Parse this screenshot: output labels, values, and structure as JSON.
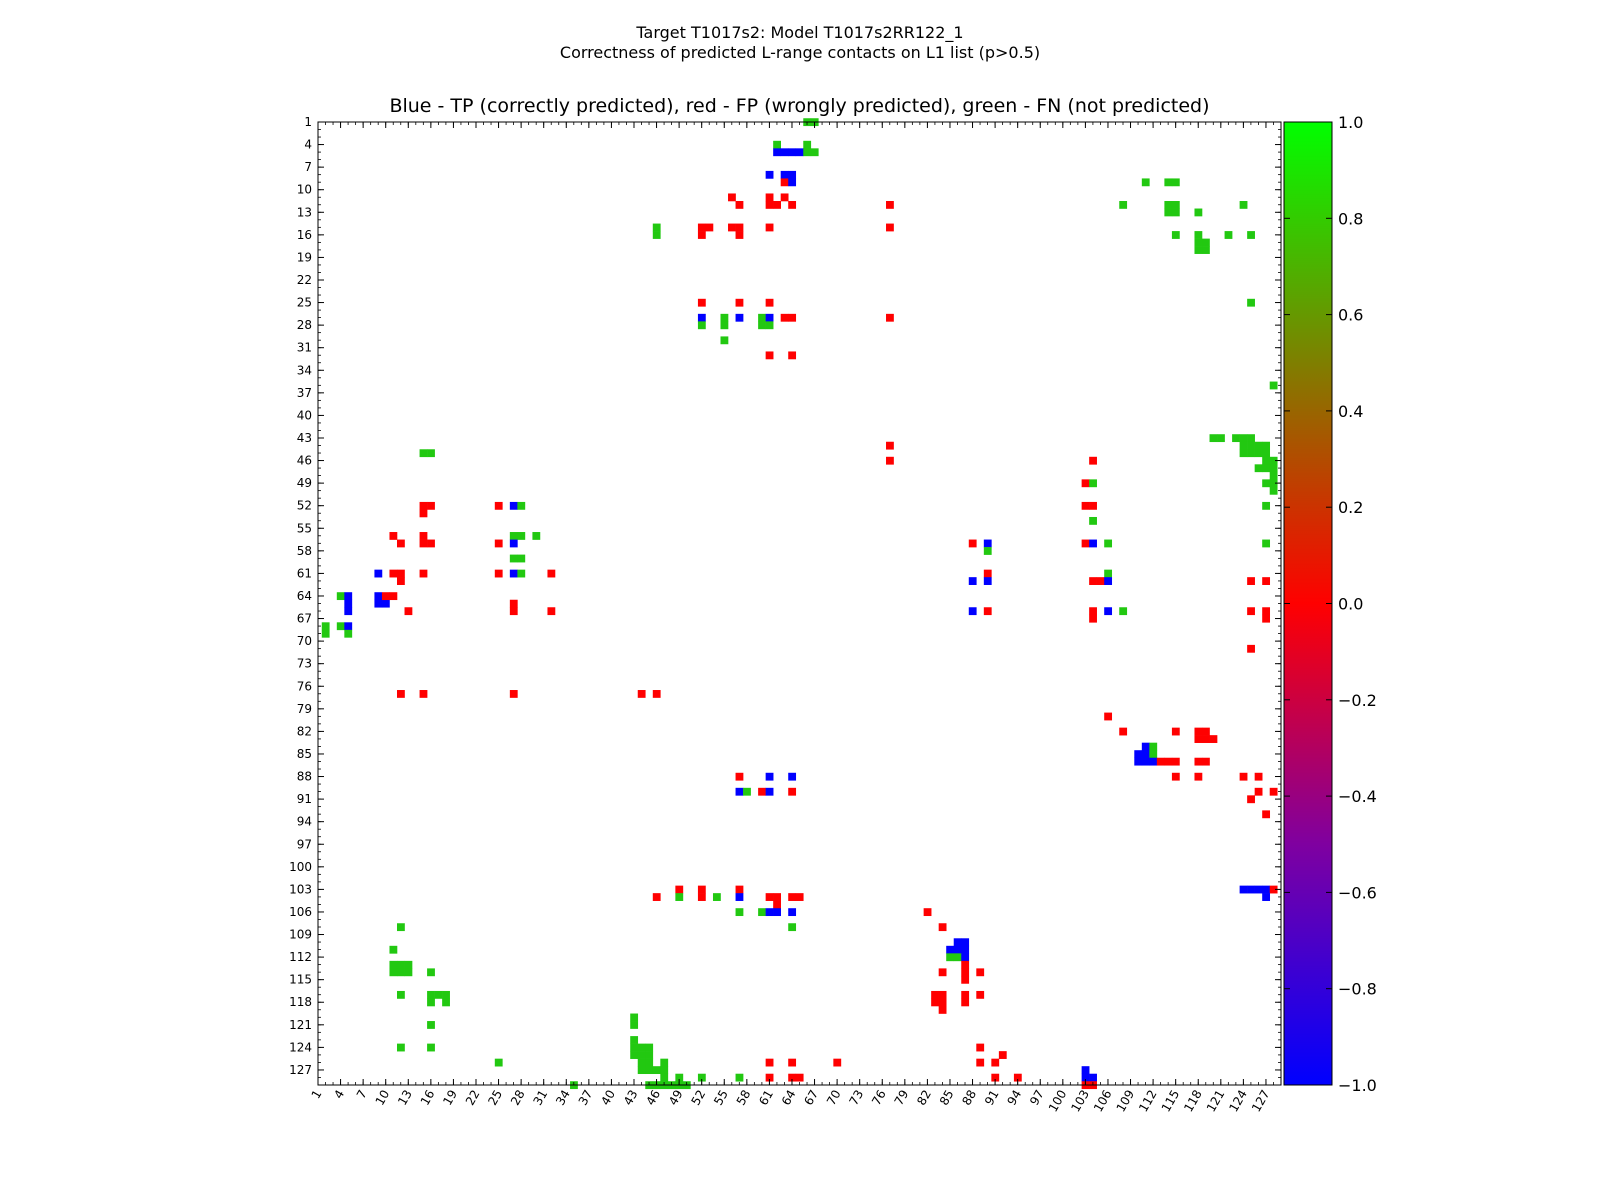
{
  "figure": {
    "suptitle_line1": "Target T1017s2: Model T1017s2RR122_1",
    "suptitle_line2": "Correctness of predicted L-range contacts on L1 list (p>0.5)"
  },
  "chart_data": {
    "type": "heatmap",
    "title": "Blue - TP (correctly predicted), red - FP (wrongly predicted), green - FN (not predicted)",
    "n_residues": 128,
    "x_range": [
      1,
      129
    ],
    "y_range": [
      1,
      129
    ],
    "y_inverted": true,
    "x_tick_labels": [
      "1",
      "4",
      "7",
      "10",
      "13",
      "16",
      "19",
      "22",
      "25",
      "28",
      "31",
      "34",
      "37",
      "40",
      "43",
      "46",
      "49",
      "52",
      "55",
      "58",
      "61",
      "64",
      "67",
      "70",
      "73",
      "76",
      "79",
      "82",
      "85",
      "88",
      "91",
      "94",
      "97",
      "100",
      "103",
      "106",
      "109",
      "112",
      "115",
      "118",
      "121",
      "124",
      "127"
    ],
    "y_tick_labels": [
      "1",
      "4",
      "7",
      "10",
      "13",
      "16",
      "19",
      "22",
      "25",
      "28",
      "31",
      "34",
      "37",
      "40",
      "43",
      "46",
      "49",
      "52",
      "55",
      "58",
      "61",
      "64",
      "67",
      "70",
      "73",
      "76",
      "79",
      "82",
      "85",
      "88",
      "91",
      "94",
      "97",
      "100",
      "103",
      "106",
      "109",
      "112",
      "115",
      "118",
      "121",
      "124",
      "127"
    ],
    "colorbar": {
      "min": -1.0,
      "max": 1.0,
      "tick_labels": [
        "1.0",
        "0.8",
        "0.6",
        "0.4",
        "0.2",
        "0.0",
        "−0.2",
        "−0.4",
        "−0.6",
        "−0.8",
        "−1.0"
      ],
      "colors": {
        "low": "#0000ff",
        "mid_low": "#7f00a0",
        "zero": "#ff0000",
        "mid_high": "#7f7f00",
        "high": "#00ff00"
      }
    },
    "category_colors": {
      "TP": "#0000ff",
      "FP": "#ff0000",
      "FN": "#22c811"
    },
    "cells_note": "[x, y, value] ; value 1 = FN (green), 0 = FP (red), -1 = TP (blue)",
    "cells": [
      [
        66,
        1,
        1
      ],
      [
        67,
        1,
        1
      ],
      [
        62,
        4,
        1
      ],
      [
        66,
        4,
        1
      ],
      [
        62,
        5,
        -1
      ],
      [
        63,
        5,
        -1
      ],
      [
        64,
        5,
        -1
      ],
      [
        65,
        5,
        -1
      ],
      [
        66,
        5,
        1
      ],
      [
        67,
        5,
        1
      ],
      [
        61,
        8,
        -1
      ],
      [
        63,
        8,
        -1
      ],
      [
        64,
        8,
        -1
      ],
      [
        63,
        9,
        0
      ],
      [
        64,
        9,
        -1
      ],
      [
        111,
        9,
        1
      ],
      [
        114,
        9,
        1
      ],
      [
        115,
        9,
        1
      ],
      [
        56,
        11,
        0
      ],
      [
        61,
        11,
        0
      ],
      [
        63,
        11,
        0
      ],
      [
        57,
        12,
        0
      ],
      [
        61,
        12,
        0
      ],
      [
        62,
        12,
        0
      ],
      [
        64,
        12,
        0
      ],
      [
        77,
        12,
        0
      ],
      [
        108,
        12,
        1
      ],
      [
        114,
        12,
        1
      ],
      [
        115,
        12,
        1
      ],
      [
        114,
        13,
        1
      ],
      [
        115,
        13,
        1
      ],
      [
        118,
        13,
        1
      ],
      [
        124,
        12,
        1
      ],
      [
        46,
        15,
        1
      ],
      [
        52,
        15,
        0
      ],
      [
        53,
        15,
        0
      ],
      [
        56,
        15,
        0
      ],
      [
        57,
        15,
        0
      ],
      [
        61,
        15,
        0
      ],
      [
        77,
        15,
        0
      ],
      [
        46,
        16,
        1
      ],
      [
        52,
        16,
        0
      ],
      [
        57,
        16,
        0
      ],
      [
        115,
        16,
        1
      ],
      [
        118,
        16,
        1
      ],
      [
        122,
        16,
        1
      ],
      [
        125,
        16,
        1
      ],
      [
        118,
        17,
        1
      ],
      [
        119,
        17,
        1
      ],
      [
        118,
        18,
        1
      ],
      [
        119,
        18,
        1
      ],
      [
        52,
        25,
        0
      ],
      [
        57,
        25,
        0
      ],
      [
        61,
        25,
        0
      ],
      [
        125,
        25,
        1
      ],
      [
        52,
        27,
        -1
      ],
      [
        57,
        27,
        -1
      ],
      [
        55,
        27,
        1
      ],
      [
        60,
        27,
        1
      ],
      [
        61,
        27,
        -1
      ],
      [
        63,
        27,
        0
      ],
      [
        64,
        27,
        0
      ],
      [
        77,
        27,
        0
      ],
      [
        52,
        28,
        1
      ],
      [
        55,
        28,
        1
      ],
      [
        60,
        28,
        1
      ],
      [
        61,
        28,
        1
      ],
      [
        55,
        30,
        1
      ],
      [
        61,
        32,
        0
      ],
      [
        64,
        32,
        0
      ],
      [
        128,
        36,
        1
      ],
      [
        120,
        43,
        1
      ],
      [
        121,
        43,
        1
      ],
      [
        123,
        43,
        1
      ],
      [
        124,
        43,
        1
      ],
      [
        125,
        43,
        1
      ],
      [
        124,
        44,
        1
      ],
      [
        125,
        44,
        1
      ],
      [
        126,
        44,
        1
      ],
      [
        127,
        44,
        1
      ],
      [
        77,
        44,
        0
      ],
      [
        124,
        45,
        1
      ],
      [
        125,
        45,
        1
      ],
      [
        126,
        45,
        1
      ],
      [
        127,
        45,
        1
      ],
      [
        15,
        45,
        1
      ],
      [
        16,
        45,
        1
      ],
      [
        104,
        46,
        0
      ],
      [
        127,
        46,
        1
      ],
      [
        77,
        46,
        0
      ],
      [
        128,
        46,
        1
      ],
      [
        126,
        47,
        1
      ],
      [
        127,
        47,
        1
      ],
      [
        128,
        47,
        1
      ],
      [
        128,
        48,
        1
      ],
      [
        103,
        49,
        0
      ],
      [
        104,
        49,
        1
      ],
      [
        127,
        49,
        1
      ],
      [
        128,
        49,
        1
      ],
      [
        128,
        50,
        1
      ],
      [
        15,
        52,
        0
      ],
      [
        16,
        52,
        0
      ],
      [
        25,
        52,
        0
      ],
      [
        27,
        52,
        -1
      ],
      [
        28,
        52,
        1
      ],
      [
        103,
        52,
        0
      ],
      [
        104,
        52,
        0
      ],
      [
        127,
        52,
        1
      ],
      [
        15,
        53,
        0
      ],
      [
        104,
        54,
        1
      ],
      [
        11,
        56,
        0
      ],
      [
        15,
        56,
        0
      ],
      [
        27,
        56,
        1
      ],
      [
        28,
        56,
        1
      ],
      [
        30,
        56,
        1
      ],
      [
        12,
        57,
        0
      ],
      [
        15,
        57,
        0
      ],
      [
        16,
        57,
        0
      ],
      [
        25,
        57,
        0
      ],
      [
        27,
        57,
        -1
      ],
      [
        88,
        57,
        0
      ],
      [
        90,
        57,
        -1
      ],
      [
        103,
        57,
        0
      ],
      [
        104,
        57,
        -1
      ],
      [
        106,
        57,
        1
      ],
      [
        127,
        57,
        1
      ],
      [
        27,
        59,
        1
      ],
      [
        28,
        59,
        1
      ],
      [
        90,
        58,
        1
      ],
      [
        9,
        61,
        -1
      ],
      [
        11,
        61,
        0
      ],
      [
        12,
        61,
        0
      ],
      [
        15,
        61,
        0
      ],
      [
        25,
        61,
        0
      ],
      [
        27,
        61,
        -1
      ],
      [
        28,
        61,
        1
      ],
      [
        32,
        61,
        0
      ],
      [
        90,
        61,
        0
      ],
      [
        106,
        61,
        1
      ],
      [
        12,
        62,
        0
      ],
      [
        88,
        62,
        -1
      ],
      [
        90,
        62,
        -1
      ],
      [
        104,
        62,
        0
      ],
      [
        105,
        62,
        0
      ],
      [
        106,
        62,
        -1
      ],
      [
        125,
        62,
        0
      ],
      [
        127,
        62,
        0
      ],
      [
        5,
        65,
        -1
      ],
      [
        9,
        65,
        -1
      ],
      [
        10,
        65,
        -1
      ],
      [
        11,
        64,
        0
      ],
      [
        13,
        66,
        0
      ],
      [
        27,
        65,
        0
      ],
      [
        32,
        66,
        0
      ],
      [
        88,
        66,
        -1
      ],
      [
        90,
        66,
        0
      ],
      [
        104,
        66,
        0
      ],
      [
        106,
        66,
        -1
      ],
      [
        108,
        66,
        1
      ],
      [
        125,
        66,
        0
      ],
      [
        127,
        66,
        0
      ],
      [
        127,
        67,
        0
      ],
      [
        4,
        64,
        1
      ],
      [
        5,
        64,
        -1
      ],
      [
        9,
        64,
        -1
      ],
      [
        10,
        64,
        0
      ],
      [
        4,
        68,
        1
      ],
      [
        5,
        68,
        -1
      ],
      [
        5,
        66,
        -1
      ],
      [
        2,
        68,
        1
      ],
      [
        2,
        69,
        1
      ],
      [
        5,
        69,
        1
      ],
      [
        104,
        67,
        0
      ],
      [
        27,
        66,
        0
      ],
      [
        125,
        71,
        0
      ],
      [
        12,
        77,
        0
      ],
      [
        15,
        77,
        0
      ],
      [
        27,
        77,
        0
      ],
      [
        44,
        77,
        0
      ],
      [
        46,
        77,
        0
      ],
      [
        106,
        80,
        0
      ],
      [
        108,
        82,
        0
      ],
      [
        115,
        82,
        0
      ],
      [
        118,
        82,
        0
      ],
      [
        119,
        82,
        0
      ],
      [
        118,
        83,
        0
      ],
      [
        119,
        83,
        0
      ],
      [
        120,
        83,
        0
      ],
      [
        111,
        84,
        -1
      ],
      [
        112,
        84,
        1
      ],
      [
        110,
        85,
        -1
      ],
      [
        111,
        85,
        -1
      ],
      [
        112,
        85,
        1
      ],
      [
        110,
        86,
        -1
      ],
      [
        111,
        86,
        -1
      ],
      [
        112,
        86,
        -1
      ],
      [
        113,
        86,
        0
      ],
      [
        114,
        86,
        0
      ],
      [
        115,
        86,
        0
      ],
      [
        118,
        86,
        0
      ],
      [
        119,
        86,
        0
      ],
      [
        57,
        88,
        0
      ],
      [
        61,
        88,
        -1
      ],
      [
        64,
        88,
        -1
      ],
      [
        115,
        88,
        0
      ],
      [
        118,
        88,
        0
      ],
      [
        124,
        88,
        0
      ],
      [
        126,
        88,
        0
      ],
      [
        57,
        90,
        -1
      ],
      [
        58,
        90,
        1
      ],
      [
        60,
        90,
        0
      ],
      [
        61,
        90,
        -1
      ],
      [
        64,
        90,
        0
      ],
      [
        126,
        90,
        0
      ],
      [
        128,
        90,
        0
      ],
      [
        125,
        91,
        0
      ],
      [
        127,
        93,
        0
      ],
      [
        49,
        103,
        0
      ],
      [
        52,
        103,
        0
      ],
      [
        57,
        103,
        0
      ],
      [
        124,
        103,
        -1
      ],
      [
        125,
        103,
        -1
      ],
      [
        126,
        103,
        -1
      ],
      [
        127,
        103,
        -1
      ],
      [
        128,
        103,
        0
      ],
      [
        46,
        104,
        0
      ],
      [
        49,
        104,
        1
      ],
      [
        52,
        104,
        0
      ],
      [
        54,
        104,
        1
      ],
      [
        57,
        104,
        -1
      ],
      [
        61,
        104,
        0
      ],
      [
        62,
        104,
        0
      ],
      [
        64,
        104,
        0
      ],
      [
        65,
        104,
        0
      ],
      [
        127,
        104,
        -1
      ],
      [
        62,
        105,
        0
      ],
      [
        57,
        106,
        1
      ],
      [
        60,
        106,
        1
      ],
      [
        61,
        106,
        -1
      ],
      [
        62,
        106,
        -1
      ],
      [
        64,
        106,
        -1
      ],
      [
        82,
        106,
        0
      ],
      [
        12,
        108,
        1
      ],
      [
        64,
        108,
        1
      ],
      [
        84,
        108,
        0
      ],
      [
        86,
        110,
        -1
      ],
      [
        87,
        110,
        -1
      ],
      [
        11,
        111,
        1
      ],
      [
        85,
        111,
        -1
      ],
      [
        86,
        111,
        -1
      ],
      [
        87,
        111,
        -1
      ],
      [
        85,
        112,
        1
      ],
      [
        86,
        112,
        1
      ],
      [
        87,
        112,
        -1
      ],
      [
        11,
        113,
        1
      ],
      [
        12,
        113,
        1
      ],
      [
        13,
        113,
        1
      ],
      [
        87,
        113,
        0
      ],
      [
        11,
        114,
        1
      ],
      [
        12,
        114,
        1
      ],
      [
        13,
        114,
        1
      ],
      [
        16,
        114,
        1
      ],
      [
        84,
        114,
        0
      ],
      [
        87,
        114,
        0
      ],
      [
        89,
        114,
        0
      ],
      [
        87,
        115,
        0
      ],
      [
        12,
        117,
        1
      ],
      [
        16,
        117,
        1
      ],
      [
        17,
        117,
        1
      ],
      [
        18,
        117,
        1
      ],
      [
        83,
        117,
        0
      ],
      [
        84,
        117,
        0
      ],
      [
        87,
        117,
        0
      ],
      [
        89,
        117,
        0
      ],
      [
        16,
        118,
        1
      ],
      [
        18,
        118,
        1
      ],
      [
        83,
        118,
        0
      ],
      [
        84,
        118,
        0
      ],
      [
        87,
        118,
        0
      ],
      [
        84,
        119,
        0
      ],
      [
        16,
        121,
        1
      ],
      [
        43,
        120,
        1
      ],
      [
        43,
        121,
        1
      ],
      [
        12,
        124,
        1
      ],
      [
        16,
        124,
        1
      ],
      [
        43,
        123,
        1
      ],
      [
        43,
        124,
        1
      ],
      [
        44,
        124,
        1
      ],
      [
        45,
        124,
        1
      ],
      [
        89,
        124,
        0
      ],
      [
        43,
        125,
        1
      ],
      [
        44,
        125,
        1
      ],
      [
        45,
        125,
        1
      ],
      [
        92,
        125,
        0
      ],
      [
        25,
        126,
        1
      ],
      [
        44,
        126,
        1
      ],
      [
        45,
        126,
        1
      ],
      [
        47,
        126,
        1
      ],
      [
        61,
        126,
        0
      ],
      [
        64,
        126,
        0
      ],
      [
        70,
        126,
        0
      ],
      [
        89,
        126,
        0
      ],
      [
        91,
        126,
        0
      ],
      [
        44,
        127,
        1
      ],
      [
        45,
        127,
        1
      ],
      [
        46,
        127,
        1
      ],
      [
        47,
        127,
        1
      ],
      [
        103,
        127,
        -1
      ],
      [
        47,
        128,
        1
      ],
      [
        49,
        128,
        1
      ],
      [
        52,
        128,
        1
      ],
      [
        57,
        128,
        1
      ],
      [
        61,
        128,
        0
      ],
      [
        64,
        128,
        0
      ],
      [
        65,
        128,
        0
      ],
      [
        91,
        128,
        0
      ],
      [
        94,
        128,
        0
      ],
      [
        103,
        128,
        -1
      ],
      [
        104,
        128,
        -1
      ],
      [
        35,
        129,
        1
      ],
      [
        45,
        129,
        1
      ],
      [
        46,
        129,
        1
      ],
      [
        47,
        129,
        1
      ],
      [
        48,
        129,
        1
      ],
      [
        49,
        129,
        1
      ],
      [
        50,
        129,
        1
      ],
      [
        103,
        129,
        0
      ],
      [
        104,
        129,
        0
      ]
    ]
  }
}
